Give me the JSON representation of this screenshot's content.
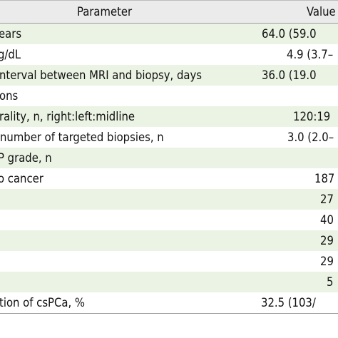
{
  "header": {
    "parameter": "Parameter",
    "value": "Value"
  },
  "rows": [
    {
      "parameter": "ears",
      "value": "64.0 (59.0"
    },
    {
      "parameter": "g/dL",
      "value": "4.9 (3.7–"
    },
    {
      "parameter": "nterval between MRI and biopsy, days",
      "value": "36.0 (19.0"
    },
    {
      "parameter": "ons",
      "value": ""
    },
    {
      "parameter": "rality, n, right:left:midline",
      "value": "120:19"
    },
    {
      "parameter": " number of targeted biopsies, n",
      "value": "3.0 (2.0–"
    },
    {
      "parameter": "P grade, n",
      "value": ""
    },
    {
      "parameter": "o cancer",
      "value": "187"
    },
    {
      "parameter": "",
      "value": "27"
    },
    {
      "parameter": "",
      "value": "40"
    },
    {
      "parameter": "",
      "value": "29"
    },
    {
      "parameter": "",
      "value": "29"
    },
    {
      "parameter": "",
      "value": "5"
    },
    {
      "parameter": "tion of csPCa, %",
      "value": "32.5 (103/"
    }
  ]
}
